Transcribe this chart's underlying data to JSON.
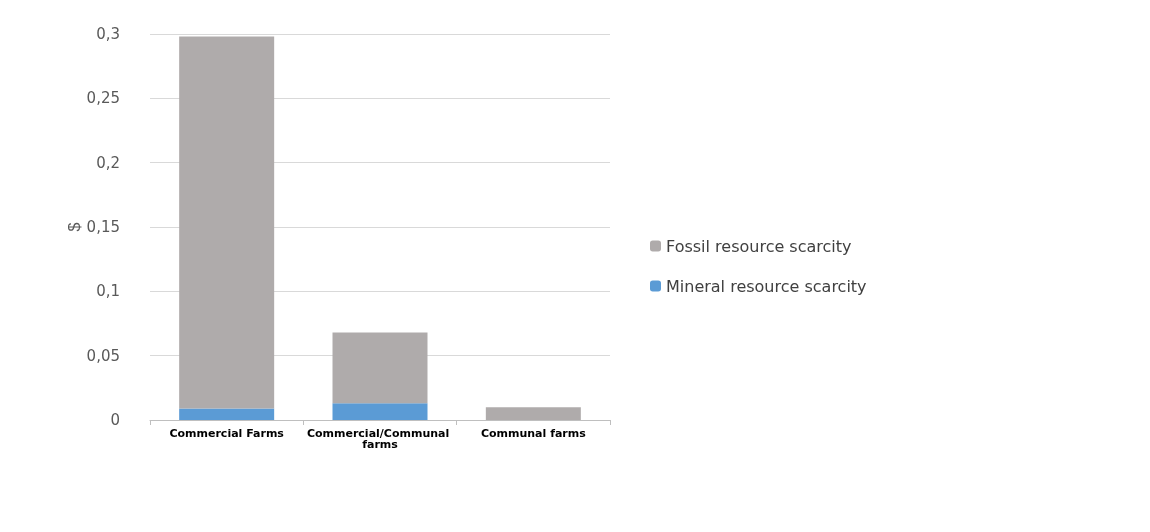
{
  "chart_data": {
    "type": "bar",
    "stacked": true,
    "ylabel": "$",
    "categories": [
      "Commercial Farms",
      "Commercial/Communal farms",
      "Communal farms"
    ],
    "series": [
      {
        "name": "Mineral resource scarcity",
        "color": "#5b9bd5",
        "values": [
          0.009,
          0.013,
          0
        ]
      },
      {
        "name": "Fossil resource scarcity",
        "color": "#afabab",
        "values": [
          0.289,
          0.055,
          0.01
        ]
      }
    ],
    "ylim": [
      0,
      0.3
    ],
    "yticks": [
      0,
      {
        "value": 0.05,
        "label": "0,05"
      },
      {
        "value": 0.1,
        "label": "0,1"
      },
      {
        "value": 0.15,
        "label": "0,15"
      },
      {
        "value": 0.2,
        "label": "0,2"
      },
      {
        "value": 0.25,
        "label": "0,25"
      },
      {
        "value": 0.3,
        "label": "0,3"
      }
    ],
    "grid": "y",
    "legend": "right"
  }
}
